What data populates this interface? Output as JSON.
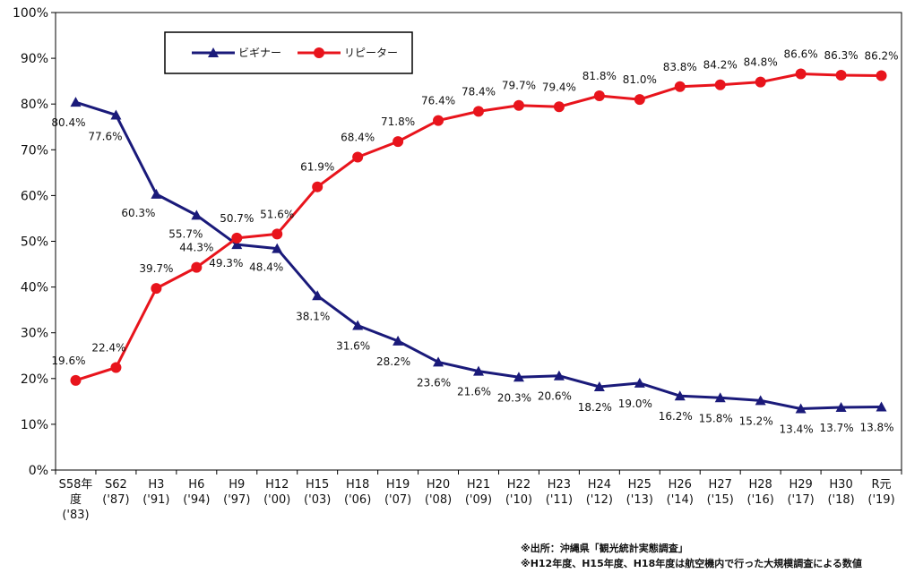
{
  "chart_data": {
    "type": "line",
    "categories": [
      [
        "S58年",
        "度",
        "('83)"
      ],
      [
        "S62",
        "('87)"
      ],
      [
        "H3",
        "('91)"
      ],
      [
        "H6",
        "('94)"
      ],
      [
        "H9",
        "('97)"
      ],
      [
        "H12",
        "('00)"
      ],
      [
        "H15",
        "('03)"
      ],
      [
        "H18",
        "('06)"
      ],
      [
        "H19",
        "('07)"
      ],
      [
        "H20",
        "('08)"
      ],
      [
        "H21",
        "('09)"
      ],
      [
        "H22",
        "('10)"
      ],
      [
        "H23",
        "('11)"
      ],
      [
        "H24",
        "('12)"
      ],
      [
        "H25",
        "('13)"
      ],
      [
        "H26",
        "('14)"
      ],
      [
        "H27",
        "('15)"
      ],
      [
        "H28",
        "('16)"
      ],
      [
        "H29",
        "('17)"
      ],
      [
        "H30",
        "('18)"
      ],
      [
        "R元",
        "('19)"
      ]
    ],
    "series": [
      {
        "name": "ビギナー",
        "color": "#1a1a7a",
        "marker": "triangle",
        "values": [
          80.4,
          77.6,
          60.3,
          55.7,
          49.3,
          48.4,
          38.1,
          31.6,
          28.2,
          23.6,
          21.6,
          20.3,
          20.6,
          18.2,
          19.0,
          16.2,
          15.8,
          15.2,
          13.4,
          13.7,
          13.8
        ],
        "labels": [
          "80.4%",
          "77.6%",
          "60.3%",
          "55.7%",
          "49.3%",
          "48.4%",
          "38.1%",
          "31.6%",
          "28.2%",
          "23.6%",
          "21.6%",
          "20.3%",
          "20.6%",
          "18.2%",
          "19.0%",
          "16.2%",
          "15.8%",
          "15.2%",
          "13.4%",
          "13.7%",
          "13.8%"
        ]
      },
      {
        "name": "リピーター",
        "color": "#e8141c",
        "marker": "circle",
        "values": [
          19.6,
          22.4,
          39.7,
          44.3,
          50.7,
          51.6,
          61.9,
          68.4,
          71.8,
          76.4,
          78.4,
          79.7,
          79.4,
          81.8,
          81.0,
          83.8,
          84.2,
          84.8,
          86.6,
          86.3,
          86.2
        ],
        "labels": [
          "19.6%",
          "22.4%",
          "39.7%",
          "44.3%",
          "50.7%",
          "51.6%",
          "61.9%",
          "68.4%",
          "71.8%",
          "76.4%",
          "78.4%",
          "79.7%",
          "79.4%",
          "81.8%",
          "81.0%",
          "83.8%",
          "84.2%",
          "84.8%",
          "86.6%",
          "86.3%",
          "86.2%"
        ]
      }
    ],
    "ylim": [
      0,
      100
    ],
    "yticks": [
      "0%",
      "10%",
      "20%",
      "30%",
      "40%",
      "50%",
      "60%",
      "70%",
      "80%",
      "90%",
      "100%"
    ],
    "grid": false,
    "legend_position": "top-left",
    "title": "",
    "xlabel": "",
    "ylabel": ""
  },
  "notes": [
    "※出所：沖縄県「観光統計実態調査」",
    "※H12年度、H15年度、H18年度は航空機内で行った大規模調査による数値"
  ]
}
